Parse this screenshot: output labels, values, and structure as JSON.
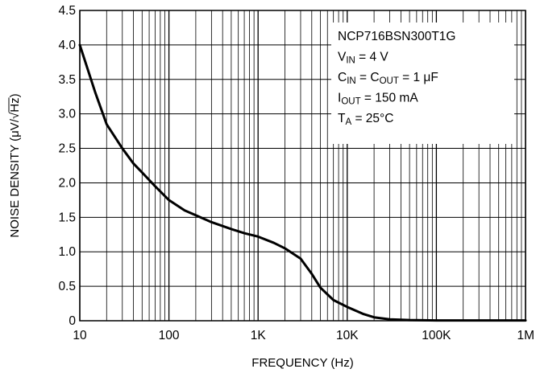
{
  "chart_data": {
    "type": "line",
    "xscale": "log",
    "xlim": [
      10,
      1000000
    ],
    "ylim": [
      0,
      4.5
    ],
    "xticks": [
      10,
      100,
      1000,
      10000,
      100000,
      1000000
    ],
    "xtick_labels": [
      "10",
      "100",
      "1K",
      "10K",
      "100K",
      "1M"
    ],
    "yticks": [
      0,
      0.5,
      1.0,
      1.5,
      2.0,
      2.5,
      3.0,
      3.5,
      4.0,
      4.5
    ],
    "ytick_labels": [
      "0",
      "0.5",
      "1.0",
      "1.5",
      "2.0",
      "2.5",
      "3.0",
      "3.5",
      "4.0",
      "4.5"
    ],
    "xlabel": "FREQUENCY (Hz)",
    "ylabel_parts": {
      "prefix": "NOISE DENSITY (",
      "mu": "μ",
      "v_slash": "V/",
      "sqrt": "√",
      "hz": "Hz",
      "suffix": ")"
    },
    "grid": true,
    "series": [
      {
        "x": [
          10,
          15,
          20,
          30,
          40,
          50,
          70,
          100,
          150,
          200,
          300,
          500,
          700,
          1000,
          1500,
          2000,
          3000,
          4000,
          5000,
          7000,
          10000,
          15000,
          20000,
          30000,
          50000,
          100000,
          1000000
        ],
        "y": [
          4.0,
          3.3,
          2.85,
          2.5,
          2.28,
          2.15,
          1.95,
          1.75,
          1.6,
          1.53,
          1.43,
          1.33,
          1.27,
          1.22,
          1.13,
          1.05,
          0.9,
          0.68,
          0.48,
          0.3,
          0.2,
          0.1,
          0.05,
          0.02,
          0.01,
          0.005,
          0.005
        ]
      }
    ],
    "annotation": [
      {
        "main": "NCP716BSN300T1G"
      },
      {
        "main": "V",
        "sub": "IN",
        "rest": " = 4 V"
      },
      {
        "main": "C",
        "sub": "IN",
        "mid": " = C",
        "sub2": "OUT",
        "rest": " = 1 μF"
      },
      {
        "main": "I",
        "sub": "OUT",
        "rest": " = 150 mA"
      },
      {
        "main": "T",
        "sub": "A",
        "rest": " = 25°C"
      }
    ]
  }
}
